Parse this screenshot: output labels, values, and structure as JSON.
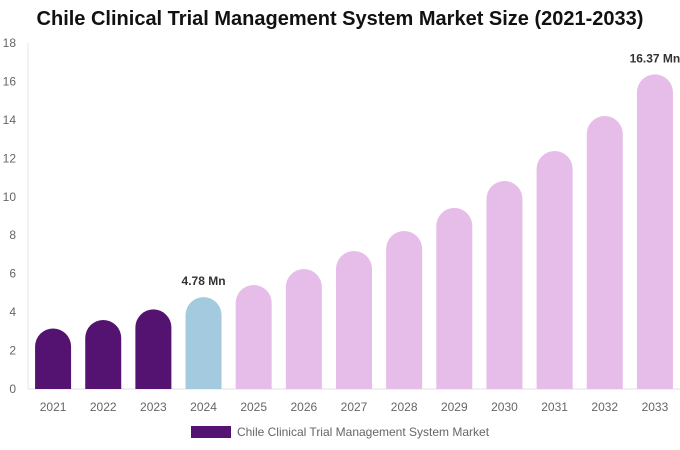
{
  "chart_data": {
    "type": "bar",
    "title": "Chile Clinical Trial Management System Market Size (2021-2033)",
    "categories": [
      "2021",
      "2022",
      "2023",
      "2024",
      "2025",
      "2026",
      "2027",
      "2028",
      "2029",
      "2030",
      "2031",
      "2032",
      "2033"
    ],
    "series": [
      {
        "name": "Chile Clinical Trial Management System Market",
        "values": [
          3.15,
          3.59,
          4.14,
          4.78,
          5.41,
          6.24,
          7.18,
          8.22,
          9.42,
          10.82,
          12.38,
          14.2,
          16.37
        ]
      }
    ],
    "data_labels": [
      {
        "category": "2024",
        "text": "4.78 Mn"
      },
      {
        "category": "2033",
        "text": "16.37 Mn"
      }
    ],
    "ylim": [
      0,
      18
    ],
    "yticks": [
      0,
      2,
      4,
      6,
      8,
      10,
      12,
      14,
      16,
      18
    ],
    "xlabel": "",
    "ylabel": "",
    "grid": false,
    "legend_position": "bottom",
    "colors": {
      "historical": "#541370",
      "current": "#a3cadf",
      "forecast": "#e6bde9"
    },
    "bar_color_groups": [
      "historical",
      "historical",
      "historical",
      "current",
      "forecast",
      "forecast",
      "forecast",
      "forecast",
      "forecast",
      "forecast",
      "forecast",
      "forecast",
      "forecast"
    ]
  }
}
